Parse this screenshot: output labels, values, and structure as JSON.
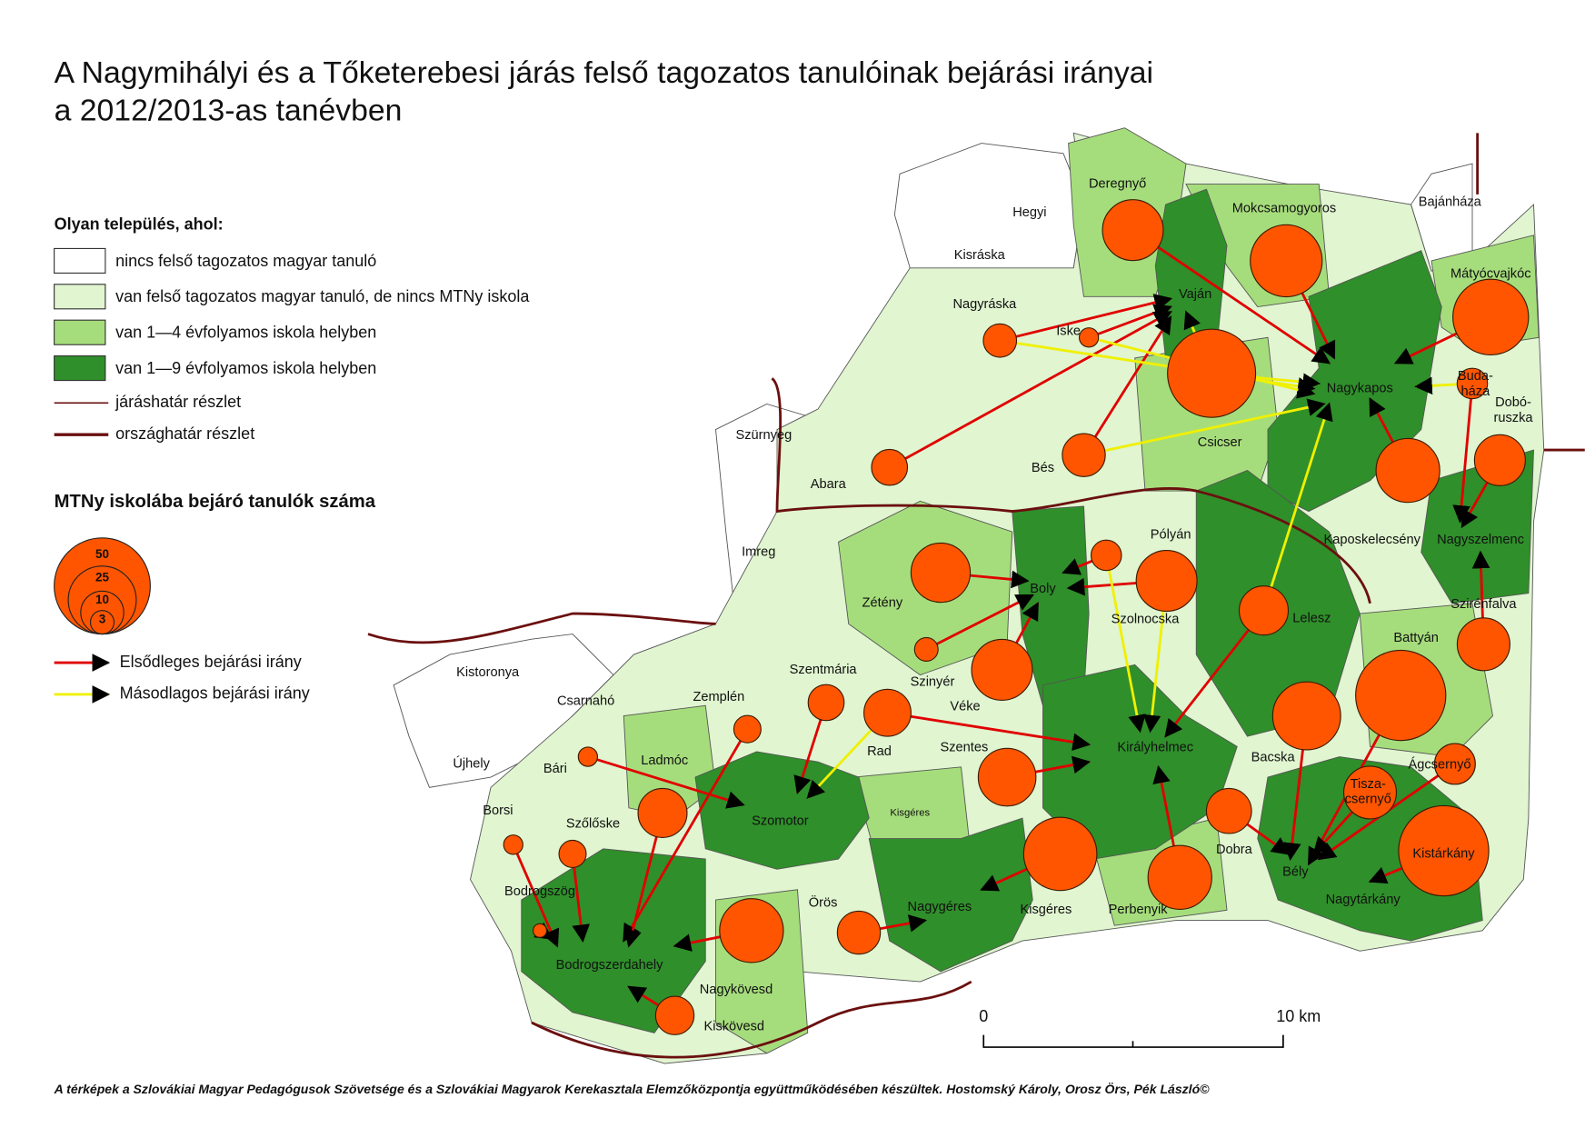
{
  "title": [
    "A Nagymihályi és a Tőketerebesi járás felső tagozatos tanulóinak bejárási irányai",
    "a 2012/2013-as tanévben"
  ],
  "legend": {
    "heading": "Olyan település, ahol:",
    "items": [
      "nincs felső tagozatos magyar tanuló",
      "van felső tagozatos magyar tanuló, de nincs MTNy iskola",
      "van 1—4 évfolyamos iskola helyben",
      "van 1—9 évfolyamos iskola helyben"
    ],
    "lines": [
      "járáshatár részlet",
      "országhatár részlet"
    ]
  },
  "bubble_legend": {
    "heading": "MTNy iskolába bejáró tanulók száma",
    "values": [
      50,
      25,
      10,
      3
    ]
  },
  "arrow_legend": [
    "Elsődleges bejárási irány",
    "Másodlagos bejárási irány"
  ],
  "places": [
    "Deregnyő",
    "Hegyi",
    "Mokcsamogyoros",
    "Bajánháza",
    "Kisráska",
    "Vaján",
    "Mátyócvajkóc",
    "Nagyráska",
    "Iske",
    "Nagykapos",
    [
      "Buda-",
      "háza"
    ],
    [
      "Dobó-",
      "ruszka"
    ],
    "Szürnyeg",
    "Csicser",
    "Bés",
    "Abara",
    "Imreg",
    "Pólyán",
    "Boly",
    "Kaposkelecsény",
    "Nagyszelmenc",
    "Zétény",
    "Szolnocska",
    "Lelesz",
    "Szirénfalva",
    "Battyán",
    "Kistoronya",
    "Csarnahó",
    "Szentmária",
    "Zemplén",
    "Szinyér",
    "Véke",
    "Királyhelmec",
    "Újhely",
    "Bári",
    "Ladmóc",
    "Rad",
    "Szentes",
    "Bacska",
    "Ágcsernyő",
    [
      "Tisza-",
      "csernyő"
    ],
    "Borsi",
    "Szőlőske",
    "Szomotor",
    "Kisgéres",
    "Dobra",
    "Kistárkány",
    "Bély",
    "Bodrogszög",
    "Örös",
    "Nagygéres",
    "Kisgéres",
    "Perbenyik",
    "Nagytárkány",
    "Bodrogszerdahely",
    "Nagykövesd",
    "Kiskövesd"
  ],
  "bubbles": [
    20,
    28,
    31,
    42,
    6,
    2,
    5,
    14,
    7,
    10,
    22,
    19,
    20,
    5,
    13,
    15,
    3,
    20,
    44,
    7,
    12,
    4,
    25,
    2,
    9,
    15,
    18,
    13,
    11,
    2,
    4,
    29,
    44,
    22,
    1,
    22,
    10,
    8
  ],
  "scale": {
    "start": "0",
    "end": "10 km"
  },
  "footer": "A térképek a  Szlovákiai Magyar Pedagógusok Szövetsége és a Szlovákiai Magyarok Kerekasztala Elemzőközpontja együttműködésében készültek. Hostomský Károly, Orosz Örs, Pék László©"
}
